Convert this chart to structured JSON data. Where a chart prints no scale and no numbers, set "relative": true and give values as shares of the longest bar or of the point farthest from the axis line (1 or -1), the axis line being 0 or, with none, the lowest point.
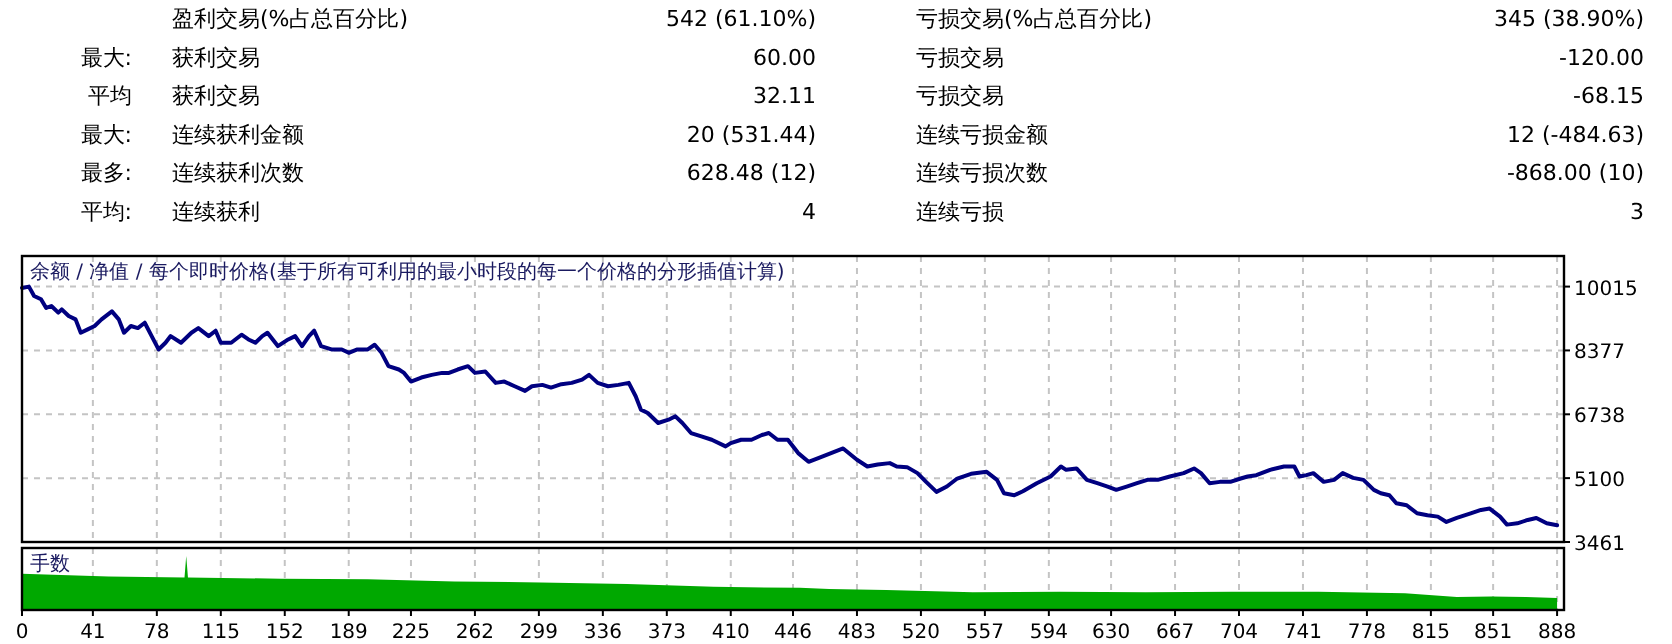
{
  "chart_data": [
    {
      "type": "other",
      "annotations": [
        "盈利交易(%占总百分比)",
        "542 (61.10%)",
        "亏损交易(%占总百分比)",
        "345 (38.90%)",
        "最大:",
        "获利交易",
        "60.00",
        "亏损交易",
        "-120.00",
        "平均",
        "获利交易",
        "32.11",
        "亏损交易",
        "-68.15",
        "最大:",
        "连续获利金额",
        "20 (531.44)",
        "连续亏损金额",
        "12 (-484.63)",
        "最多:",
        "连续获利次数",
        "628.48 (12)",
        "连续亏损次数",
        "-868.00 (10)",
        "平均:",
        "连续获利",
        "4",
        "连续亏损",
        "3"
      ]
    },
    {
      "type": "line",
      "title": "余额 / 净值 / 每个即时价格(基于所有可利用的最小时段的每一个价格的分形插值计算)",
      "xlim": [
        0,
        892
      ],
      "xticks": [
        0,
        41,
        78,
        115,
        152,
        189,
        225,
        262,
        299,
        336,
        373,
        410,
        446,
        483,
        520,
        557,
        594,
        630,
        667,
        704,
        741,
        778,
        815,
        851,
        888
      ],
      "ylim": [
        3461,
        10800
      ],
      "yticks": [
        3461,
        5100,
        6738,
        8377,
        10015
      ],
      "grid": true,
      "tick_labels": "y",
      "x": [
        0,
        4,
        7,
        11,
        14,
        17,
        21,
        23,
        27,
        31,
        34,
        38,
        42,
        46,
        52,
        56,
        59,
        63,
        67,
        71,
        75,
        79,
        83,
        86,
        92,
        98,
        102,
        108,
        112,
        115,
        121,
        127,
        131,
        135,
        139,
        142,
        148,
        154,
        158,
        162,
        166,
        169,
        173,
        179,
        185,
        189,
        194,
        200,
        204,
        208,
        212,
        218,
        221,
        225,
        231,
        237,
        243,
        247,
        252,
        258,
        262,
        268,
        274,
        279,
        285,
        291,
        295,
        301,
        306,
        312,
        318,
        324,
        328,
        333,
        339,
        345,
        351,
        355,
        358,
        362,
        368,
        374,
        378,
        382,
        387,
        393,
        399,
        407,
        410,
        416,
        422,
        428,
        432,
        437,
        443,
        449,
        455,
        461,
        468,
        475,
        483,
        489,
        495,
        502,
        506,
        512,
        518,
        523,
        529,
        535,
        541,
        549,
        558,
        564,
        568,
        574,
        579,
        587,
        595,
        601,
        604,
        610,
        616,
        622,
        628,
        633,
        639,
        645,
        651,
        657,
        664,
        672,
        678,
        682,
        687,
        693,
        699,
        705,
        709,
        714,
        722,
        730,
        736,
        739,
        743,
        747,
        753,
        759,
        764,
        770,
        776,
        782,
        786,
        791,
        795,
        801,
        807,
        813,
        819,
        824,
        830,
        838,
        844,
        849,
        855,
        859,
        865,
        871,
        876,
        882,
        888
      ],
      "series": [
        {
          "color": "#000080",
          "values": [
            9981,
            10015,
            9775,
            9689,
            9466,
            9517,
            9346,
            9432,
            9260,
            9174,
            8831,
            8917,
            9003,
            9174,
            9380,
            9174,
            8831,
            9003,
            8951,
            9088,
            8745,
            8402,
            8574,
            8745,
            8574,
            8831,
            8951,
            8745,
            8882,
            8574,
            8574,
            8780,
            8659,
            8574,
            8745,
            8831,
            8488,
            8659,
            8745,
            8488,
            8745,
            8882,
            8488,
            8402,
            8402,
            8316,
            8402,
            8402,
            8522,
            8316,
            7973,
            7887,
            7801,
            7578,
            7681,
            7750,
            7801,
            7801,
            7887,
            7973,
            7801,
            7836,
            7544,
            7578,
            7458,
            7338,
            7458,
            7493,
            7424,
            7510,
            7544,
            7630,
            7750,
            7544,
            7458,
            7493,
            7544,
            7201,
            6858,
            6772,
            6515,
            6600,
            6686,
            6515,
            6257,
            6171,
            6085,
            5914,
            6000,
            6085,
            6085,
            6206,
            6257,
            6085,
            6085,
            5742,
            5519,
            5622,
            5742,
            5862,
            5571,
            5399,
            5451,
            5485,
            5399,
            5382,
            5228,
            5004,
            4747,
            4884,
            5090,
            5210,
            5262,
            5056,
            4713,
            4661,
            4764,
            4970,
            5142,
            5399,
            5313,
            5348,
            5056,
            4970,
            4884,
            4799,
            4884,
            4970,
            5056,
            5056,
            5142,
            5228,
            5348,
            5228,
            4970,
            5004,
            5004,
            5090,
            5142,
            5176,
            5313,
            5399,
            5399,
            5142,
            5176,
            5228,
            5004,
            5056,
            5228,
            5107,
            5056,
            4799,
            4713,
            4661,
            4455,
            4404,
            4198,
            4147,
            4112,
            3975,
            4078,
            4198,
            4284,
            4318,
            4112,
            3907,
            3941,
            4027,
            4078,
            3941,
            3890
          ]
        }
      ]
    },
    {
      "type": "area",
      "title": "手数",
      "relative": true,
      "xlim": [
        0,
        892
      ],
      "xticks": [
        0,
        41,
        78,
        115,
        152,
        189,
        225,
        262,
        299,
        336,
        373,
        410,
        446,
        483,
        520,
        557,
        594,
        630,
        667,
        704,
        741,
        778,
        815,
        851,
        888
      ],
      "grid": "x",
      "tick_labels": "x",
      "x": [
        0,
        50,
        94,
        95,
        96,
        150,
        200,
        250,
        300,
        350,
        400,
        450,
        467,
        500,
        550,
        600,
        650,
        700,
        750,
        800,
        830,
        850,
        870,
        888
      ],
      "series": [
        {
          "color": "#00a800",
          "values": [
            0.67,
            0.62,
            0.6,
            1,
            0.6,
            0.58,
            0.57,
            0.53,
            0.51,
            0.48,
            0.43,
            0.41,
            0.39,
            0.37,
            0.33,
            0.34,
            0.33,
            0.34,
            0.34,
            0.31,
            0.24,
            0.25,
            0.24,
            0.22
          ]
        }
      ]
    }
  ]
}
